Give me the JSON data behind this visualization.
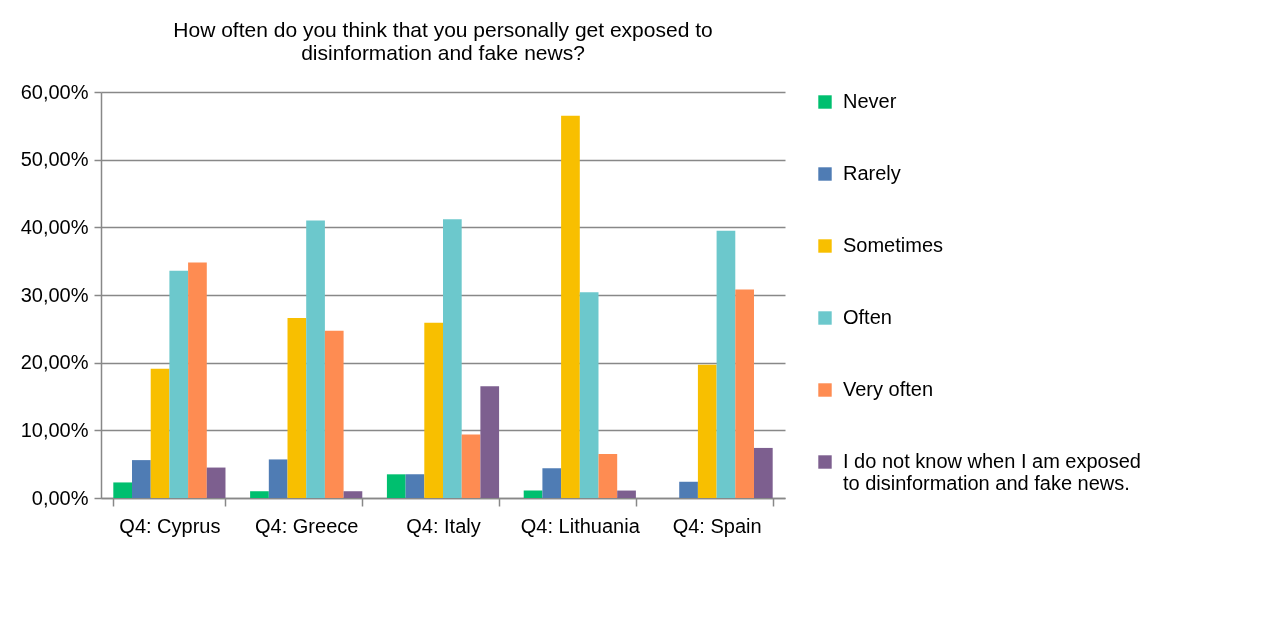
{
  "chart_data": {
    "type": "bar",
    "title": "How often do you think that you personally get exposed to disinformation and fake news?",
    "categories": [
      "Q4: Cyprus",
      "Q4: Greece",
      "Q4: Italy",
      "Q4: Lithuania",
      "Q4: Spain"
    ],
    "series": [
      {
        "name": "Never",
        "color": "#00bf6f",
        "values": [
          2.3,
          1.0,
          3.5,
          1.1,
          0
        ]
      },
      {
        "name": "Rarely",
        "color": "#4f7cb4",
        "values": [
          5.6,
          5.7,
          3.5,
          4.4,
          2.4
        ]
      },
      {
        "name": "Sometimes",
        "color": "#f8bf00",
        "values": [
          19.1,
          26.6,
          25.9,
          56.5,
          19.7
        ]
      },
      {
        "name": "Often",
        "color": "#6cc8cc",
        "values": [
          33.6,
          41.0,
          41.2,
          30.4,
          39.5
        ]
      },
      {
        "name": "Very often",
        "color": "#fe8c52",
        "values": [
          34.8,
          24.7,
          9.4,
          6.5,
          30.8
        ]
      },
      {
        "name": "I do not know when I am exposed to disinformation and fake news.",
        "color": "#7d5f8f",
        "values": [
          4.5,
          1.0,
          16.5,
          1.1,
          7.4
        ]
      }
    ],
    "ylim": [
      0,
      60
    ],
    "yticks": [
      {
        "value": 0,
        "label": "0,00%"
      },
      {
        "value": 10,
        "label": "10,00%"
      },
      {
        "value": 20,
        "label": "20,00%"
      },
      {
        "value": 30,
        "label": "30,00%"
      },
      {
        "value": 40,
        "label": "40,00%"
      },
      {
        "value": 50,
        "label": "50,00%"
      },
      {
        "value": 60,
        "label": "60,00%"
      }
    ],
    "grid": "y",
    "legend": "right"
  }
}
